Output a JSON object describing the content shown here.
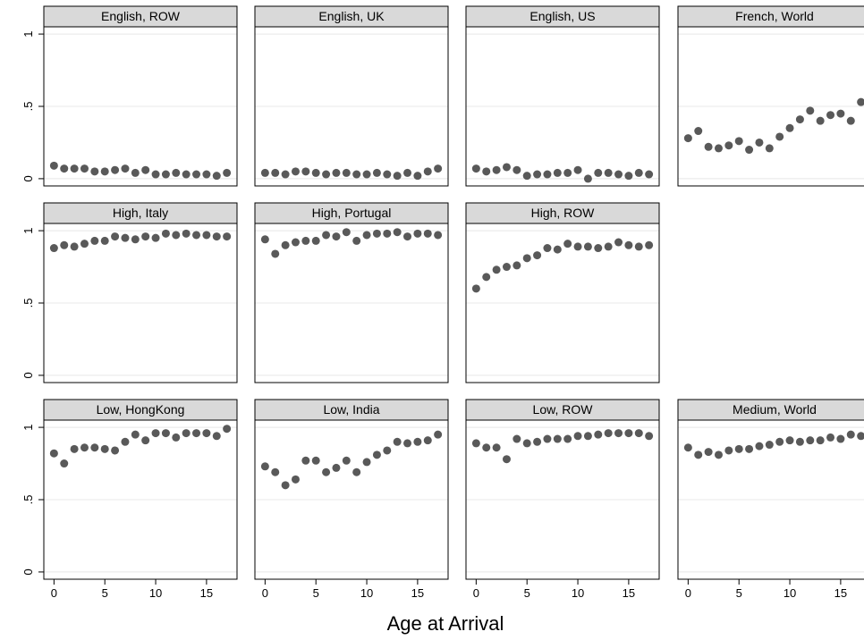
{
  "chart_data": {
    "type": "scatter",
    "title": "",
    "xlabel": "Age at Arrival",
    "ylabel": "",
    "xlim": [
      -1,
      18
    ],
    "ylim": [
      -0.05,
      1.05
    ],
    "x_ticks": [
      0,
      5,
      10,
      15
    ],
    "y_ticks": [
      0,
      0.5,
      1
    ],
    "y_tick_labels": [
      "0",
      ".5",
      "1"
    ],
    "grid": true,
    "marker_color": "#595959",
    "strip_color": "#d9d9d9",
    "panels": [
      {
        "name": "English, ROW",
        "x": [
          0,
          1,
          2,
          3,
          4,
          5,
          6,
          7,
          8,
          9,
          10,
          11,
          12,
          13,
          14,
          15,
          16,
          17
        ],
        "values": [
          0.09,
          0.07,
          0.07,
          0.07,
          0.05,
          0.05,
          0.06,
          0.07,
          0.04,
          0.06,
          0.03,
          0.03,
          0.04,
          0.03,
          0.03,
          0.03,
          0.02,
          0.04
        ]
      },
      {
        "name": "English, UK",
        "x": [
          0,
          1,
          2,
          3,
          4,
          5,
          6,
          7,
          8,
          9,
          10,
          11,
          12,
          13,
          14,
          15,
          16,
          17
        ],
        "values": [
          0.04,
          0.04,
          0.03,
          0.05,
          0.05,
          0.04,
          0.03,
          0.04,
          0.04,
          0.03,
          0.03,
          0.04,
          0.03,
          0.02,
          0.04,
          0.02,
          0.05,
          0.07
        ]
      },
      {
        "name": "English, US",
        "x": [
          0,
          1,
          2,
          3,
          4,
          5,
          6,
          7,
          8,
          9,
          10,
          11,
          12,
          13,
          14,
          15,
          16,
          17
        ],
        "values": [
          0.07,
          0.05,
          0.06,
          0.08,
          0.06,
          0.02,
          0.03,
          0.03,
          0.04,
          0.04,
          0.06,
          0.0,
          0.04,
          0.04,
          0.03,
          0.02,
          0.04,
          0.03
        ]
      },
      {
        "name": "French, World",
        "x": [
          0,
          1,
          2,
          3,
          4,
          5,
          6,
          7,
          8,
          9,
          10,
          11,
          12,
          13,
          14,
          15,
          16,
          17
        ],
        "values": [
          0.28,
          0.33,
          0.22,
          0.21,
          0.23,
          0.26,
          0.2,
          0.25,
          0.21,
          0.29,
          0.35,
          0.41,
          0.47,
          0.4,
          0.44,
          0.45,
          0.4,
          0.53
        ]
      },
      {
        "name": "High, Italy",
        "x": [
          0,
          1,
          2,
          3,
          4,
          5,
          6,
          7,
          8,
          9,
          10,
          11,
          12,
          13,
          14,
          15,
          16,
          17
        ],
        "values": [
          0.88,
          0.9,
          0.89,
          0.91,
          0.93,
          0.93,
          0.96,
          0.95,
          0.94,
          0.96,
          0.95,
          0.98,
          0.97,
          0.98,
          0.97,
          0.97,
          0.96,
          0.96
        ]
      },
      {
        "name": "High, Portugal",
        "x": [
          0,
          1,
          2,
          3,
          4,
          5,
          6,
          7,
          8,
          9,
          10,
          11,
          12,
          13,
          14,
          15,
          16,
          17
        ],
        "values": [
          0.94,
          0.84,
          0.9,
          0.92,
          0.93,
          0.93,
          0.97,
          0.96,
          0.99,
          0.93,
          0.97,
          0.98,
          0.98,
          0.99,
          0.96,
          0.98,
          0.98,
          0.97
        ]
      },
      {
        "name": "High, ROW",
        "x": [
          0,
          1,
          2,
          3,
          4,
          5,
          6,
          7,
          8,
          9,
          10,
          11,
          12,
          13,
          14,
          15,
          16,
          17
        ],
        "values": [
          0.6,
          0.68,
          0.73,
          0.75,
          0.76,
          0.81,
          0.83,
          0.88,
          0.87,
          0.91,
          0.89,
          0.89,
          0.88,
          0.89,
          0.92,
          0.9,
          0.89,
          0.9
        ]
      },
      {
        "name": "Low, HongKong",
        "x": [
          0,
          1,
          2,
          3,
          4,
          5,
          6,
          7,
          8,
          9,
          10,
          11,
          12,
          13,
          14,
          15,
          16,
          17
        ],
        "values": [
          0.82,
          0.75,
          0.85,
          0.86,
          0.86,
          0.85,
          0.84,
          0.9,
          0.95,
          0.91,
          0.96,
          0.96,
          0.93,
          0.96,
          0.96,
          0.96,
          0.94,
          0.99
        ]
      },
      {
        "name": "Low, India",
        "x": [
          0,
          1,
          2,
          3,
          4,
          5,
          6,
          7,
          8,
          9,
          10,
          11,
          12,
          13,
          14,
          15,
          16,
          17
        ],
        "values": [
          0.73,
          0.69,
          0.6,
          0.64,
          0.77,
          0.77,
          0.69,
          0.72,
          0.77,
          0.69,
          0.76,
          0.81,
          0.84,
          0.9,
          0.89,
          0.9,
          0.91,
          0.95
        ]
      },
      {
        "name": "Low, ROW",
        "x": [
          0,
          1,
          2,
          3,
          4,
          5,
          6,
          7,
          8,
          9,
          10,
          11,
          12,
          13,
          14,
          15,
          16,
          17
        ],
        "values": [
          0.89,
          0.86,
          0.86,
          0.78,
          0.92,
          0.89,
          0.9,
          0.92,
          0.92,
          0.92,
          0.94,
          0.94,
          0.95,
          0.96,
          0.96,
          0.96,
          0.96,
          0.94
        ]
      },
      {
        "name": "Medium, World",
        "x": [
          0,
          1,
          2,
          3,
          4,
          5,
          6,
          7,
          8,
          9,
          10,
          11,
          12,
          13,
          14,
          15,
          16,
          17
        ],
        "values": [
          0.86,
          0.81,
          0.83,
          0.81,
          0.84,
          0.85,
          0.85,
          0.87,
          0.88,
          0.9,
          0.91,
          0.9,
          0.91,
          0.91,
          0.93,
          0.92,
          0.95,
          0.94
        ]
      }
    ]
  }
}
